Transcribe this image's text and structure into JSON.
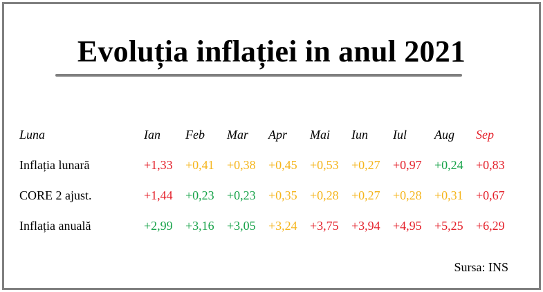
{
  "title": "Evoluția inflației in anul 2021",
  "source": "Sursa: INS",
  "colors": {
    "red": "#e4202a",
    "green": "#18a34a",
    "yellow": "#f5b51c",
    "black": "#000000",
    "border": "#7f7f7f"
  },
  "chart_data": {
    "type": "table",
    "title": "Evoluția inflației in anul 2021",
    "header_label": "Luna",
    "columns": [
      {
        "label": "Ian",
        "color": "#000000"
      },
      {
        "label": "Feb",
        "color": "#000000"
      },
      {
        "label": "Mar",
        "color": "#000000"
      },
      {
        "label": "Apr",
        "color": "#000000"
      },
      {
        "label": "Mai",
        "color": "#000000"
      },
      {
        "label": "Iun",
        "color": "#000000"
      },
      {
        "label": "Iul",
        "color": "#000000"
      },
      {
        "label": "Aug",
        "color": "#000000"
      },
      {
        "label": "Sep",
        "color": "#e4202a"
      }
    ],
    "rows": [
      {
        "label": "Inflația lunară",
        "values": [
          "+1,33",
          "+0,41",
          "+0,38",
          "+0,45",
          "+0,53",
          "+0,27",
          "+0,97",
          "+0,24",
          "+0,83"
        ],
        "colors": [
          "#e4202a",
          "#f5b51c",
          "#f5b51c",
          "#f5b51c",
          "#f5b51c",
          "#f5b51c",
          "#e4202a",
          "#18a34a",
          "#e4202a"
        ]
      },
      {
        "label": "CORE 2 ajust.",
        "values": [
          "+1,44",
          "+0,23",
          "+0,23",
          "+0,35",
          "+0,28",
          "+0,27",
          "+0,28",
          "+0,31",
          "+0,67"
        ],
        "colors": [
          "#e4202a",
          "#18a34a",
          "#18a34a",
          "#f5b51c",
          "#f5b51c",
          "#f5b51c",
          "#f5b51c",
          "#f5b51c",
          "#e4202a"
        ]
      },
      {
        "label": "Inflația anuală",
        "values": [
          "+2,99",
          "+3,16",
          "+3,05",
          "+3,24",
          "+3,75",
          "+3,94",
          "+4,95",
          "+5,25",
          "+6,29"
        ],
        "colors": [
          "#18a34a",
          "#18a34a",
          "#18a34a",
          "#f5b51c",
          "#e4202a",
          "#e4202a",
          "#e4202a",
          "#e4202a",
          "#e4202a"
        ]
      }
    ]
  }
}
